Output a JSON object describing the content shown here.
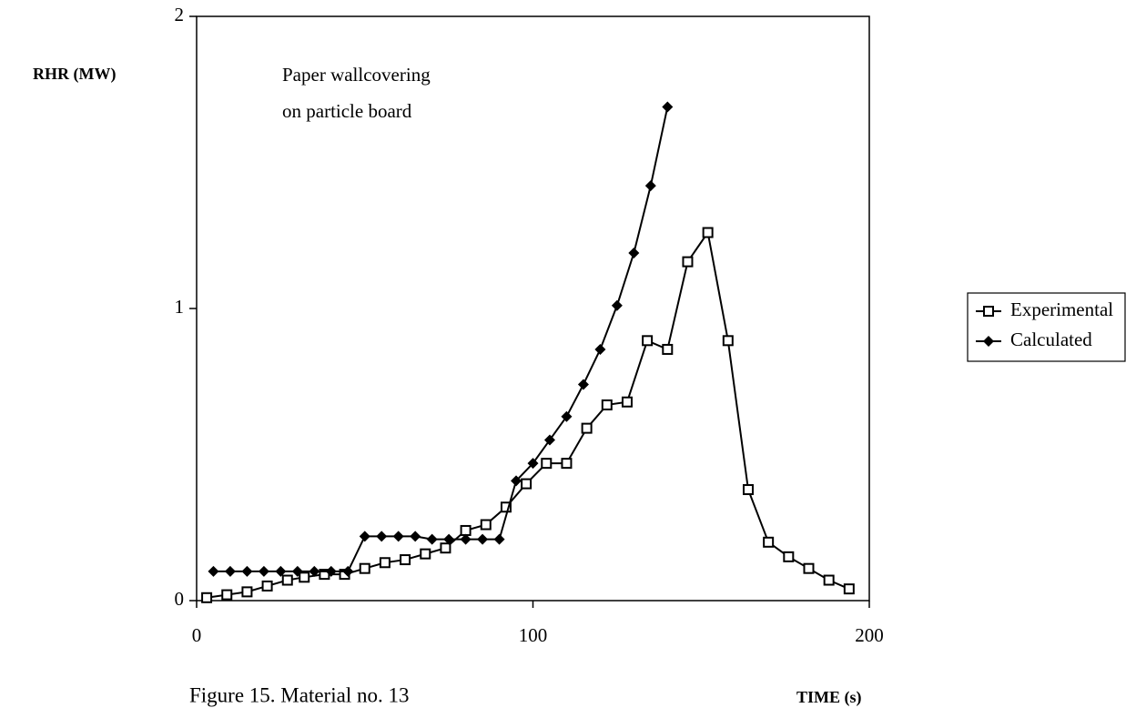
{
  "chart_data": {
    "type": "line",
    "y_label": "RHR (MW)",
    "x_label": "TIME (s)",
    "caption": "Figure 15.  Material no. 13",
    "annotation": [
      "Paper wallcovering",
      "on particle board"
    ],
    "xlim": [
      0,
      200
    ],
    "xticks": [
      0,
      100,
      200
    ],
    "ylim": [
      0,
      2
    ],
    "yticks": [
      0,
      1,
      2
    ],
    "legend": "right",
    "series": [
      {
        "name": "Experimental",
        "color": "#000000",
        "marker": "square-open",
        "x": [
          3,
          9,
          15,
          21,
          27,
          32,
          38,
          44,
          50,
          56,
          62,
          68,
          74,
          80,
          86,
          92,
          98,
          104,
          110,
          116,
          122,
          128,
          134,
          140,
          146,
          152,
          158,
          164,
          170,
          176,
          182,
          188,
          194
        ],
        "values": [
          0.01,
          0.02,
          0.03,
          0.05,
          0.07,
          0.08,
          0.09,
          0.09,
          0.11,
          0.13,
          0.14,
          0.16,
          0.18,
          0.24,
          0.26,
          0.32,
          0.4,
          0.47,
          0.47,
          0.59,
          0.67,
          0.68,
          0.89,
          0.86,
          1.16,
          1.26,
          0.89,
          0.38,
          0.2,
          0.15,
          0.11,
          0.07,
          0.04
        ]
      },
      {
        "name": "Calculated",
        "color": "#000000",
        "marker": "diamond-filled",
        "x": [
          5,
          10,
          15,
          20,
          25,
          30,
          35,
          40,
          45,
          50,
          55,
          60,
          65,
          70,
          75,
          80,
          85,
          90,
          95,
          100,
          105,
          110,
          115,
          120,
          125,
          130,
          135,
          140
        ],
        "values": [
          0.1,
          0.1,
          0.1,
          0.1,
          0.1,
          0.1,
          0.1,
          0.1,
          0.1,
          0.22,
          0.22,
          0.22,
          0.22,
          0.21,
          0.21,
          0.21,
          0.21,
          0.21,
          0.41,
          0.47,
          0.55,
          0.63,
          0.74,
          0.86,
          1.01,
          1.19,
          1.42,
          1.69
        ]
      }
    ]
  }
}
